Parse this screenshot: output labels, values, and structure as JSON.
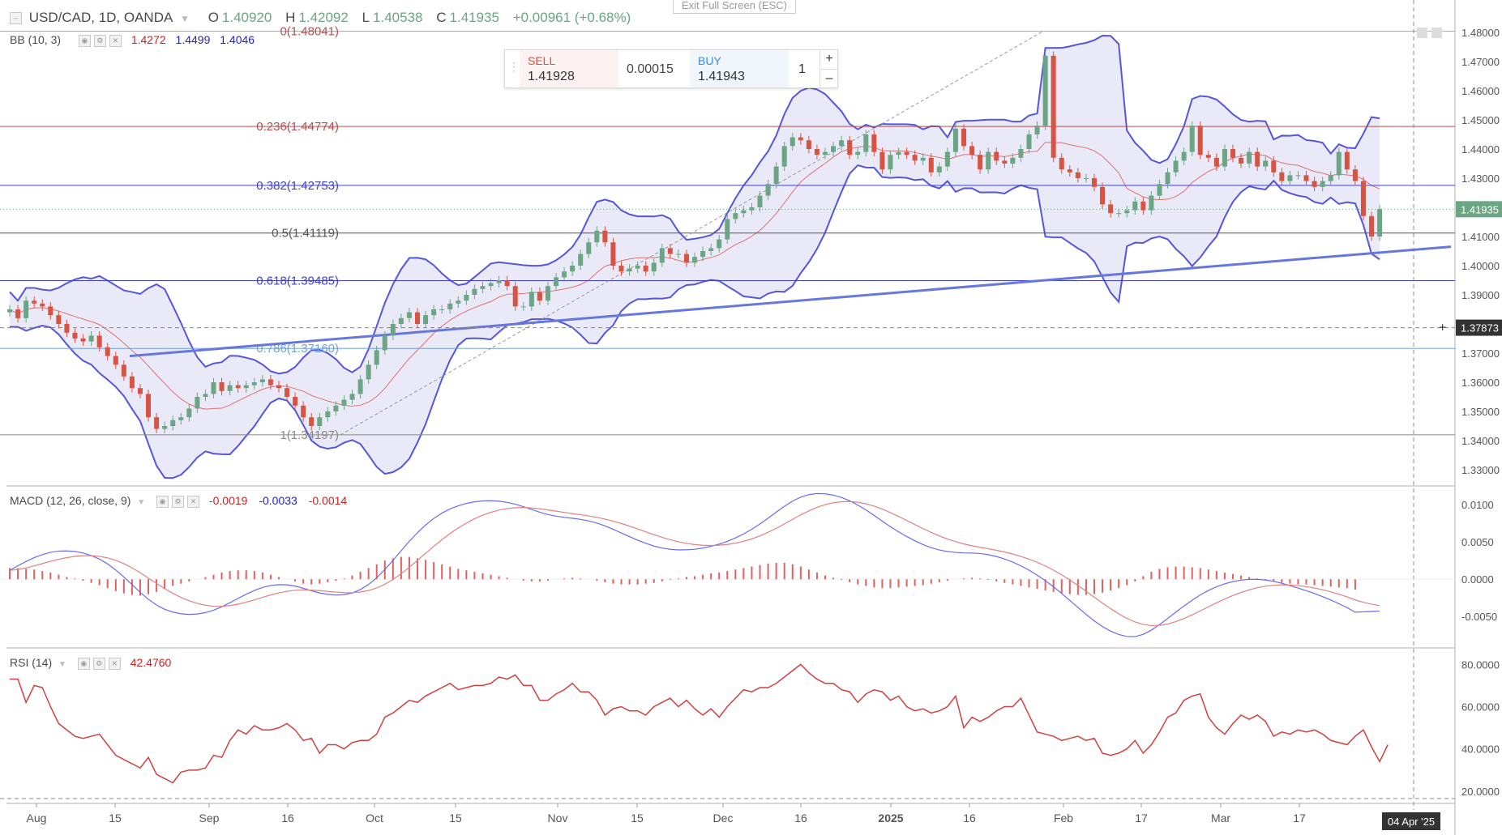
{
  "header": {
    "symbol": "USD/CAD, 1D, OANDA",
    "o_label": "O",
    "o_value": "1.40920",
    "h_label": "H",
    "h_value": "1.42092",
    "l_label": "L",
    "l_value": "1.40538",
    "c_label": "C",
    "c_value": "1.41935",
    "change": "+0.00961 (+0.68%)"
  },
  "bb_legend": {
    "name": "BB (10, 3)",
    "v1": "1.4272",
    "v2": "1.4499",
    "v3": "1.4046"
  },
  "macd_legend": {
    "name": "MACD (12, 26, close, 9)",
    "v1": "-0.0019",
    "v2": "-0.0033",
    "v3": "-0.0014"
  },
  "rsi_legend": {
    "name": "RSI (14)",
    "v1": "42.4760"
  },
  "exit_fullscreen": "Exit Full Screen (ESC)",
  "trade": {
    "sell_label": "SELL",
    "sell_price": "1.41928",
    "spread": "0.00015",
    "buy_label": "BUY",
    "buy_price": "1.41943",
    "quantity": "1",
    "plus": "+",
    "minus": "–"
  },
  "fib_labels": [
    {
      "label": "0(1.48041)",
      "value": 1.48041
    },
    {
      "label": "0.236(1.44774)",
      "value": 1.44774
    },
    {
      "label": "0.382(1.42753)",
      "value": 1.42753
    },
    {
      "label": "0.5(1.41119)",
      "value": 1.41119
    },
    {
      "label": "0.618(1.39485)",
      "value": 1.39485
    },
    {
      "label": "0.786(1.37160)",
      "value": 1.3716
    },
    {
      "label": "1(1.34197)",
      "value": 1.34197
    }
  ],
  "price_axis": [
    "1.48000",
    "1.47000",
    "1.46000",
    "1.45000",
    "1.44000",
    "1.43000",
    "1.42000",
    "1.41000",
    "1.40000",
    "1.39000",
    "1.38000",
    "1.37000",
    "1.36000",
    "1.35000",
    "1.34000",
    "1.33000"
  ],
  "last_price_tag": "1.41935",
  "crosshair_price_tag": "1.37873",
  "macd_axis": [
    "0.0100",
    "0.0050",
    "0.0000",
    "-0.0050"
  ],
  "rsi_axis": [
    "80.0000",
    "60.0000",
    "40.0000",
    "20.0000"
  ],
  "time_axis": [
    "Aug",
    "15",
    "Sep",
    "16",
    "Oct",
    "15",
    "Nov",
    "15",
    "Dec",
    "16",
    "2025",
    "16",
    "Feb",
    "17",
    "Mar",
    "17"
  ],
  "date_tag": "04 Apr '25",
  "colors": {
    "up": "#6ba583",
    "down": "#d75442",
    "bb": "#5555dd",
    "bbfill": "#e3e4f5",
    "fib_red": "#b05050",
    "fib_blue": "#4040cc",
    "fib_light": "#70a0e0",
    "trend": "#6677dd",
    "rsi": "#d04040",
    "macd": "#6a6aee",
    "signal": "#e08080"
  },
  "chart_data": {
    "type": "candlestick",
    "close": [
      1.385,
      1.382,
      1.388,
      1.387,
      1.386,
      1.383,
      1.38,
      1.377,
      1.375,
      1.374,
      1.376,
      1.372,
      1.369,
      1.366,
      1.362,
      1.358,
      1.356,
      1.348,
      1.344,
      1.345,
      1.347,
      1.348,
      1.351,
      1.355,
      1.356,
      1.36,
      1.357,
      1.359,
      1.358,
      1.359,
      1.36,
      1.361,
      1.359,
      1.358,
      1.355,
      1.352,
      1.348,
      1.345,
      1.348,
      1.35,
      1.352,
      1.354,
      1.356,
      1.361,
      1.366,
      1.371,
      1.376,
      1.38,
      1.382,
      1.384,
      1.38,
      1.383,
      1.385,
      1.385,
      1.387,
      1.388,
      1.39,
      1.392,
      1.393,
      1.394,
      1.395,
      1.393,
      1.386,
      1.386,
      1.391,
      1.388,
      1.393,
      1.396,
      1.398,
      1.4,
      1.404,
      1.408,
      1.412,
      1.408,
      1.4,
      1.398,
      1.399,
      1.4,
      1.398,
      1.401,
      1.406,
      1.404,
      1.404,
      1.401,
      1.403,
      1.405,
      1.406,
      1.409,
      1.416,
      1.418,
      1.419,
      1.42,
      1.424,
      1.428,
      1.434,
      1.441,
      1.444,
      1.443,
      1.44,
      1.438,
      1.439,
      1.441,
      1.443,
      1.438,
      1.439,
      1.445,
      1.439,
      1.433,
      1.438,
      1.439,
      1.438,
      1.436,
      1.437,
      1.432,
      1.434,
      1.439,
      1.447,
      1.441,
      1.438,
      1.433,
      1.439,
      1.436,
      1.435,
      1.437,
      1.44,
      1.445,
      1.448,
      1.472,
      1.437,
      1.433,
      1.432,
      1.43,
      1.43,
      1.427,
      1.421,
      1.418,
      1.418,
      1.419,
      1.422,
      1.419,
      1.424,
      1.428,
      1.432,
      1.436,
      1.439,
      1.448,
      1.438,
      1.437,
      1.434,
      1.44,
      1.437,
      1.435,
      1.439,
      1.434,
      1.436,
      1.432,
      1.429,
      1.431,
      1.431,
      1.429,
      1.427,
      1.429,
      1.431,
      1.439,
      1.433,
      1.429,
      1.417,
      1.41,
      1.4194
    ],
    "rsi": [
      73,
      73,
      62,
      70,
      69,
      60,
      52,
      49,
      46,
      45,
      46,
      47,
      42,
      37,
      35,
      33,
      31,
      36,
      28,
      26,
      24,
      29,
      30,
      30,
      31,
      37,
      36,
      44,
      49,
      47,
      51,
      49,
      49,
      50,
      52,
      49,
      44,
      45,
      38,
      42,
      42,
      40,
      43,
      44,
      44,
      47,
      55,
      57,
      60,
      63,
      62,
      65,
      67,
      69,
      71,
      68,
      69,
      70,
      70,
      71,
      74,
      73,
      75,
      70,
      70,
      63,
      63,
      66,
      68,
      71,
      67,
      67,
      63,
      56,
      59,
      60,
      58,
      58,
      56,
      60,
      62,
      64,
      60,
      63,
      59,
      56,
      59,
      55,
      60,
      64,
      68,
      67,
      69,
      69,
      71,
      74,
      77,
      80,
      76,
      73,
      71,
      71,
      68,
      67,
      62,
      66,
      68,
      67,
      63,
      65,
      60,
      58,
      59,
      57,
      58,
      60,
      65,
      50,
      55,
      53,
      55,
      58,
      60,
      60,
      64,
      56,
      48,
      47,
      46,
      44,
      45,
      46,
      44,
      45,
      38,
      37,
      38,
      40,
      44,
      38,
      42,
      48,
      55,
      57,
      63,
      65,
      66,
      55,
      50,
      47,
      52,
      56,
      54,
      56,
      53,
      46,
      48,
      47,
      49,
      48,
      49,
      47,
      44,
      43,
      42,
      46,
      49,
      41,
      34,
      42
    ],
    "macd_hist": [
      0.0015,
      0.0015,
      0.0014,
      0.0013,
      0.0011,
      0.0009,
      0.0006,
      0.0003,
      0.0001,
      -0.0002,
      -0.0005,
      -0.0008,
      -0.0012,
      -0.0016,
      -0.0019,
      -0.0021,
      -0.0022,
      -0.002,
      -0.0017,
      -0.0013,
      -0.0009,
      -0.0006,
      -0.0003,
      0.0,
      0.0003,
      0.0006,
      0.0009,
      0.0011,
      0.0012,
      0.0012,
      0.0011,
      0.0009,
      0.0006,
      0.0003,
      0.0,
      -0.0003,
      -0.0006,
      -0.0007,
      -0.0006,
      -0.0004,
      -0.0002,
      0.0001,
      0.0005,
      0.001,
      0.0015,
      0.002,
      0.0025,
      0.0028,
      0.003,
      0.003,
      0.0028,
      0.0026,
      0.0023,
      0.002,
      0.0017,
      0.0014,
      0.0012,
      0.001,
      0.0008,
      0.0006,
      0.0004,
      0.0002,
      0.0,
      -0.0002,
      -0.0003,
      -0.0003,
      -0.0002,
      0.0,
      0.0001,
      0.0002,
      0.0001,
      0.0,
      -0.0002,
      -0.0004,
      -0.0006,
      -0.0007,
      -0.0007,
      -0.0007,
      -0.0006,
      -0.0005,
      -0.0003,
      -0.0001,
      0.0001,
      0.0003,
      0.0004,
      0.0006,
      0.0008,
      0.0009,
      0.0011,
      0.0013,
      0.0015,
      0.0017,
      0.0019,
      0.0021,
      0.0022,
      0.0022,
      0.002,
      0.0017,
      0.0013,
      0.0009,
      0.0005,
      0.0002,
      -0.0001,
      -0.0004,
      -0.0007,
      -0.0009,
      -0.0011,
      -0.0012,
      -0.0012,
      -0.0011,
      -0.001,
      -0.0009,
      -0.0008,
      -0.0006,
      -0.0004,
      -0.0002,
      0.0,
      0.0001,
      0.0002,
      0.0001,
      -0.0001,
      -0.0003,
      -0.0005,
      -0.0007,
      -0.0009,
      -0.0011,
      -0.0013,
      -0.0015,
      -0.0017,
      -0.0019,
      -0.002,
      -0.0021,
      -0.0021,
      -0.002,
      -0.0018,
      -0.0015,
      -0.0012,
      -0.0008,
      -0.0003,
      0.0004,
      0.001,
      0.0014,
      0.0016,
      0.0017,
      0.0017,
      0.0016,
      0.0015,
      0.0013,
      0.0011,
      0.0009,
      0.0007,
      0.0005,
      0.0003,
      0.0001,
      -0.0001,
      -0.0003,
      -0.0005,
      -0.0006,
      -0.0007,
      -0.0007,
      -0.0008,
      -0.0009,
      -0.001,
      -0.0011,
      -0.0012,
      -0.0014
    ],
    "price_range": [
      1.325,
      1.485
    ],
    "macd_range": [
      -0.009,
      0.0123
    ],
    "rsi_range": [
      15,
      87
    ]
  }
}
